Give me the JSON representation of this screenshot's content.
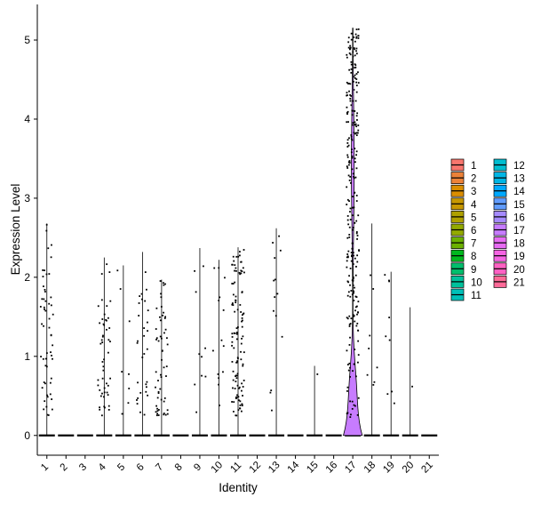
{
  "chart_data": {
    "type": "violin",
    "xlabel": "Identity",
    "ylabel": "Expression Level",
    "ylim": [
      -0.25,
      5.45
    ],
    "yticks": [
      0,
      1,
      2,
      3,
      4,
      5
    ],
    "categories": [
      "1",
      "2",
      "3",
      "4",
      "5",
      "6",
      "7",
      "8",
      "9",
      "10",
      "11",
      "12",
      "13",
      "14",
      "15",
      "16",
      "17",
      "18",
      "19",
      "20",
      "21"
    ],
    "colors": [
      "#F8766D",
      "#EC8239",
      "#DB8E00",
      "#C79800",
      "#AFA100",
      "#93AA00",
      "#6BB100",
      "#00B81F",
      "#00BE6C",
      "#00C19C",
      "#00C0B8",
      "#00BDD0",
      "#00B5E4",
      "#00A9FF",
      "#619CFF",
      "#A58AFF",
      "#C77CFF",
      "#E76BF3",
      "#F564E3",
      "#FF61C3",
      "#FF6A98"
    ],
    "max_values": [
      2.68,
      0,
      0,
      2.25,
      2.15,
      2.32,
      1.97,
      0,
      2.37,
      2.22,
      2.38,
      0,
      2.62,
      0,
      0.88,
      0,
      5.15,
      2.68,
      2.07,
      1.62,
      0
    ],
    "dot_counts": [
      55,
      0,
      0,
      50,
      8,
      30,
      55,
      0,
      10,
      14,
      110,
      0,
      14,
      0,
      1,
      0,
      260,
      8,
      9,
      1,
      0
    ],
    "legend": {
      "columns": 2,
      "entries": [
        "1",
        "2",
        "3",
        "4",
        "5",
        "6",
        "7",
        "8",
        "9",
        "10",
        "11",
        "12",
        "13",
        "14",
        "15",
        "16",
        "17",
        "18",
        "19",
        "20",
        "21"
      ]
    }
  }
}
